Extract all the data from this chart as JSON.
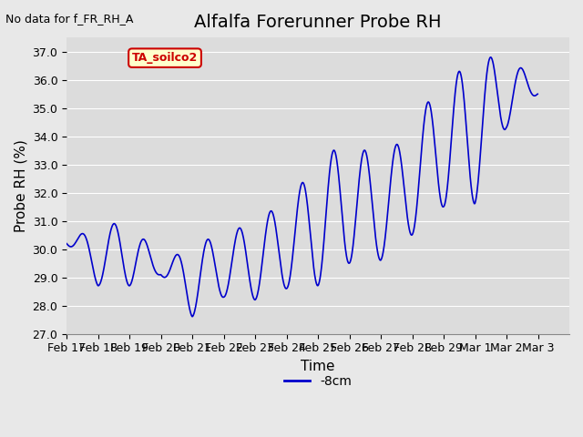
{
  "title": "Alfalfa Forerunner Probe RH",
  "xlabel": "Time",
  "ylabel": "Probe RH (%)",
  "no_data_label": "No data for f_FR_RH_A",
  "legend_label": "-8cm",
  "legend_label2": "TA_soilco2",
  "ylim": [
    27.0,
    37.5
  ],
  "yticks": [
    27.0,
    28.0,
    29.0,
    30.0,
    31.0,
    32.0,
    33.0,
    34.0,
    35.0,
    36.0,
    37.0
  ],
  "line_color": "#0000cc",
  "background_color": "#e8e8e8",
  "plot_bg_color": "#dcdcdc",
  "title_fontsize": 14,
  "axis_fontsize": 11,
  "tick_fontsize": 9,
  "legend2_facecolor": "#ffffcc",
  "legend2_edgecolor": "#cc0000",
  "legend2_textcolor": "#cc0000"
}
